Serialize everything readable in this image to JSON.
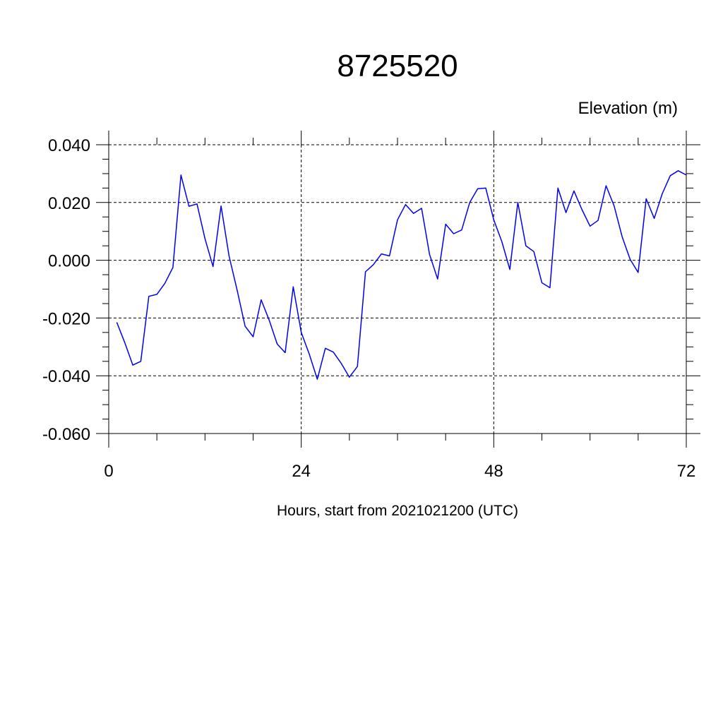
{
  "chart_data": {
    "type": "line",
    "title": "8725520",
    "subtitle": "Elevation (m)",
    "xlabel": "Hours, start from 2021021200 (UTC)",
    "ylabel": "",
    "xlim": [
      0,
      72
    ],
    "ylim": [
      -0.06,
      0.04
    ],
    "x_ticks": [
      0,
      24,
      48,
      72
    ],
    "x_tick_labels": [
      "0",
      "24",
      "48",
      "72"
    ],
    "y_ticks": [
      -0.06,
      -0.04,
      -0.02,
      0.0,
      0.02,
      0.04
    ],
    "y_tick_labels": [
      "-0.060",
      "-0.040",
      "-0.020",
      "0.000",
      "0.020",
      "0.040"
    ],
    "grid": true,
    "series": [
      {
        "color": "#0000ee",
        "x": [
          1,
          2,
          3,
          4,
          5,
          6,
          7,
          8,
          9,
          10,
          11,
          12,
          13,
          14,
          15,
          16,
          17,
          18,
          19,
          20,
          21,
          22,
          23,
          24,
          25,
          26,
          27,
          28,
          29,
          30,
          31,
          32,
          33,
          34,
          35,
          36,
          37,
          38,
          39,
          40,
          41,
          42,
          43,
          44,
          45,
          46,
          47,
          48,
          49,
          50,
          51,
          52,
          53,
          54,
          55,
          56,
          57,
          58,
          59,
          60,
          61,
          62,
          63,
          64,
          65,
          66,
          67,
          68,
          69,
          70,
          71,
          72
        ],
        "y": [
          -0.0215,
          -0.0285,
          -0.0363,
          -0.035,
          -0.0125,
          -0.0118,
          -0.008,
          -0.0025,
          0.0295,
          0.0187,
          0.0195,
          0.0075,
          -0.0022,
          0.0188,
          0.0015,
          -0.0103,
          -0.0228,
          -0.0265,
          -0.0137,
          -0.0207,
          -0.029,
          -0.032,
          -0.0092,
          -0.025,
          -0.0325,
          -0.0412,
          -0.0305,
          -0.0318,
          -0.0358,
          -0.0405,
          -0.0368,
          -0.004,
          -0.0015,
          0.0022,
          0.0015,
          0.014,
          0.0193,
          0.0162,
          0.018,
          0.002,
          -0.0065,
          0.0125,
          0.0092,
          0.0105,
          0.02,
          0.0248,
          0.025,
          0.014,
          0.0065,
          -0.0032,
          0.02,
          0.005,
          0.003,
          -0.0078,
          -0.0095,
          0.025,
          0.0165,
          0.024,
          0.0175,
          0.0118,
          0.0138,
          0.0258,
          0.0188,
          0.0082,
          0.0003,
          -0.0042,
          0.0213,
          0.0145,
          0.023,
          0.0293,
          0.031,
          0.0295
        ]
      }
    ]
  }
}
